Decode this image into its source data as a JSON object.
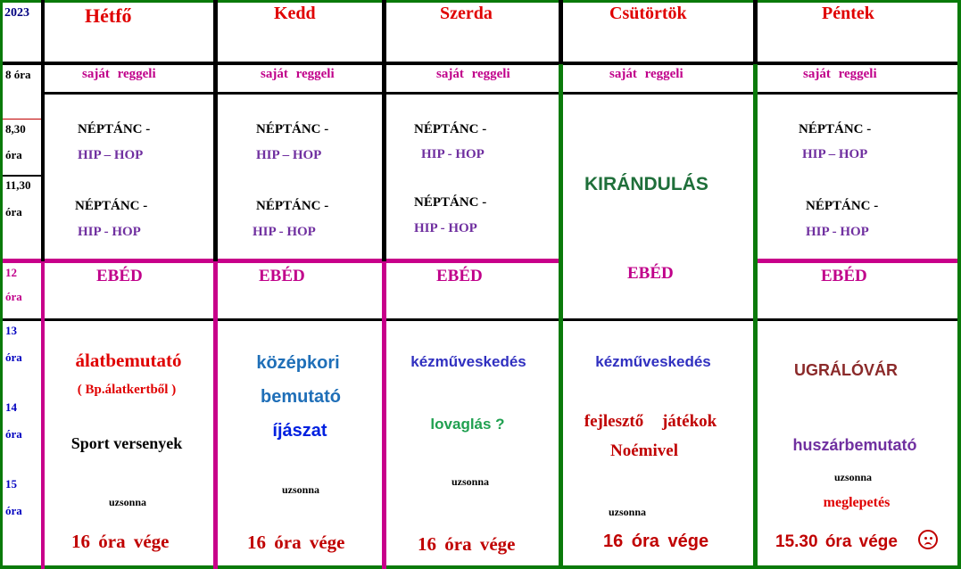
{
  "year": "2023",
  "colors": {
    "day": "#e00000",
    "magenta": "#c0008a",
    "purple": "#7030a0",
    "green_dark": "#1f7a3a",
    "black": "#000000"
  },
  "time_labels": [
    {
      "hour": "8 óra"
    },
    {
      "hour": "8,30",
      "unit": "óra"
    },
    {
      "hour": "11,30",
      "unit": "óra"
    },
    {
      "hour": "12",
      "unit": "óra"
    },
    {
      "hour": "13",
      "unit": "óra"
    },
    {
      "hour": "14",
      "unit": "óra"
    },
    {
      "hour": "15",
      "unit": "óra"
    }
  ],
  "days": [
    {
      "name": "Hétfő",
      "breakfast": "saját reggeli",
      "morning": [
        "NÉPTÁNC -",
        "HIP – HOP",
        "NÉPTÁNC -",
        "HIP - HOP"
      ],
      "lunch": "EBÉD",
      "afternoon": [
        "álatbemutató",
        "( Bp.álatkertből )",
        "Sport versenyek",
        "uzsonna"
      ],
      "end": "16 óra vége"
    },
    {
      "name": "Kedd",
      "breakfast": "saját reggeli",
      "morning": [
        "NÉPTÁNC -",
        "HIP – HOP",
        "NÉPTÁNC -",
        "HIP - HOP"
      ],
      "lunch": "EBÉD",
      "afternoon": [
        "középkori",
        "bemutató",
        "íjászat",
        "uzsonna"
      ],
      "end": "16 óra vége"
    },
    {
      "name": "Szerda",
      "breakfast": "saját reggeli",
      "morning": [
        "NÉPTÁNC -",
        "HIP - HOP",
        "NÉPTÁNC -",
        "HIP - HOP"
      ],
      "lunch": "EBÉD",
      "afternoon": [
        "kézműveskedés",
        "lovaglás ?",
        "uzsonna"
      ],
      "end": "16 óra vége"
    },
    {
      "name": "Csütörtök",
      "breakfast": "saját reggeli",
      "morning": [
        "KIRÁNDULÁS"
      ],
      "lunch": "EBÉD",
      "afternoon": [
        "kézműveskedés",
        "fejlesztő játékok",
        "Noémivel",
        "uzsonna"
      ],
      "end": "16 óra vége"
    },
    {
      "name": "Péntek",
      "breakfast": "saját reggeli",
      "morning": [
        "NÉPTÁNC -",
        "HIP – HOP",
        "NÉPTÁNC -",
        "HIP - HOP"
      ],
      "lunch": "EBÉD",
      "afternoon": [
        "UGRÁLÓVÁR",
        "huszárbemutató",
        "uzsonna",
        "meglepetés"
      ],
      "end": "15.30 óra vége",
      "end_icon": "sad-face-icon"
    }
  ]
}
